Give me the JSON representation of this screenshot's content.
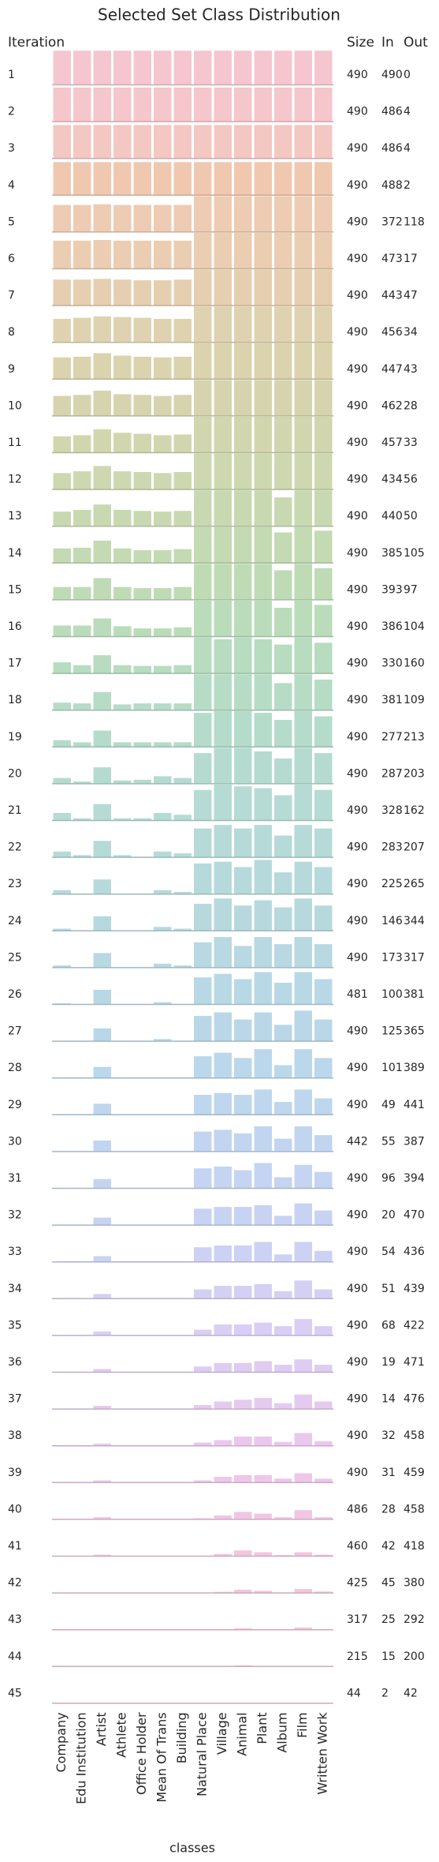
{
  "chart_data": {
    "type": "bar",
    "title": "Selected Set Class Distribution",
    "row_label": "Iteration",
    "columns": [
      "Size",
      "In",
      "Out"
    ],
    "xlabel": "classes",
    "categories": [
      "Company",
      "Edu Institution",
      "Artist",
      "Athlete",
      "Office Holder",
      "Mean Of Trans",
      "Building",
      "Natural Place",
      "Village",
      "Animal",
      "Plant",
      "Album",
      "Film",
      "Written Work"
    ],
    "ylim": [
      0,
      1
    ],
    "rows": [
      {
        "iteration": 1,
        "size": 490,
        "in": 490,
        "out": 0,
        "color": "#f5c6cf",
        "values": [
          0.95,
          0.95,
          0.95,
          0.95,
          0.95,
          0.95,
          0.95,
          0.95,
          0.95,
          0.95,
          0.95,
          0.95,
          0.95,
          0.95
        ]
      },
      {
        "iteration": 2,
        "size": 490,
        "in": 486,
        "out": 4,
        "color": "#f5c6cb",
        "values": [
          0.95,
          0.95,
          0.95,
          0.95,
          0.95,
          0.95,
          0.95,
          0.95,
          0.95,
          0.95,
          0.95,
          0.95,
          0.95,
          0.95
        ]
      },
      {
        "iteration": 3,
        "size": 490,
        "in": 486,
        "out": 4,
        "color": "#f3c7c2",
        "values": [
          0.93,
          0.93,
          0.93,
          0.93,
          0.93,
          0.93,
          0.93,
          0.93,
          0.93,
          0.93,
          0.93,
          0.93,
          0.93,
          0.93
        ]
      },
      {
        "iteration": 4,
        "size": 490,
        "in": 488,
        "out": 2,
        "color": "#f0c8b0",
        "values": [
          0.92,
          0.92,
          0.92,
          0.92,
          0.92,
          0.92,
          0.92,
          0.92,
          0.92,
          0.92,
          0.92,
          0.92,
          0.92,
          0.92
        ]
      },
      {
        "iteration": 5,
        "size": 490,
        "in": 372,
        "out": 118,
        "color": "#eecbb3",
        "values": [
          0.75,
          0.75,
          0.77,
          0.75,
          0.75,
          0.75,
          0.75,
          1,
          1,
          1,
          1,
          1,
          1,
          1
        ]
      },
      {
        "iteration": 6,
        "size": 490,
        "in": 473,
        "out": 17,
        "color": "#ebcdb2",
        "values": [
          0.78,
          0.78,
          0.8,
          0.78,
          0.78,
          0.78,
          0.78,
          1,
          1,
          1,
          1,
          1,
          1,
          1
        ]
      },
      {
        "iteration": 7,
        "size": 490,
        "in": 443,
        "out": 47,
        "color": "#e6cfb0",
        "values": [
          0.72,
          0.72,
          0.74,
          0.72,
          0.7,
          0.7,
          0.72,
          1,
          1,
          1,
          1,
          1,
          1,
          1
        ]
      },
      {
        "iteration": 8,
        "size": 490,
        "in": 456,
        "out": 34,
        "color": "#dfd2b0",
        "values": [
          0.65,
          0.68,
          0.72,
          0.7,
          0.68,
          0.65,
          0.65,
          1,
          1,
          1,
          1,
          1,
          1,
          1
        ]
      },
      {
        "iteration": 9,
        "size": 490,
        "in": 447,
        "out": 43,
        "color": "#dbd3ae",
        "values": [
          0.6,
          0.62,
          0.72,
          0.65,
          0.62,
          0.6,
          0.62,
          1,
          1,
          1,
          1,
          1,
          1,
          1
        ]
      },
      {
        "iteration": 10,
        "size": 490,
        "in": 462,
        "out": 28,
        "color": "#d6d4ae",
        "values": [
          0.55,
          0.58,
          0.7,
          0.6,
          0.58,
          0.55,
          0.58,
          1,
          1,
          1,
          1,
          1,
          1,
          1
        ]
      },
      {
        "iteration": 11,
        "size": 490,
        "in": 457,
        "out": 33,
        "color": "#d2d6ae",
        "values": [
          0.45,
          0.48,
          0.65,
          0.55,
          0.52,
          0.48,
          0.5,
          1,
          1,
          1,
          1,
          1,
          1,
          1
        ]
      },
      {
        "iteration": 12,
        "size": 490,
        "in": 434,
        "out": 56,
        "color": "#cdd8b0",
        "values": [
          0.45,
          0.5,
          0.65,
          0.5,
          0.48,
          0.45,
          0.48,
          1,
          1,
          1,
          1,
          1,
          1,
          1
        ]
      },
      {
        "iteration": 13,
        "size": 490,
        "in": 440,
        "out": 50,
        "color": "#c8d9b1",
        "values": [
          0.4,
          0.45,
          0.6,
          0.45,
          0.42,
          0.4,
          0.42,
          1,
          1,
          1,
          1,
          0.8,
          1,
          1
        ]
      },
      {
        "iteration": 14,
        "size": 490,
        "in": 385,
        "out": 105,
        "color": "#c3dab3",
        "values": [
          0.4,
          0.42,
          0.62,
          0.4,
          0.35,
          0.35,
          0.38,
          1,
          1,
          1,
          1,
          0.85,
          1,
          0.9
        ]
      },
      {
        "iteration": 15,
        "size": 490,
        "in": 393,
        "out": 97,
        "color": "#bedbb6",
        "values": [
          0.35,
          0.35,
          0.6,
          0.35,
          0.32,
          0.32,
          0.35,
          1,
          1,
          1,
          1,
          0.82,
          1,
          0.88
        ]
      },
      {
        "iteration": 16,
        "size": 490,
        "in": 386,
        "out": 104,
        "color": "#badcba",
        "values": [
          0.3,
          0.3,
          0.5,
          0.28,
          0.22,
          0.22,
          0.25,
          1,
          1,
          1,
          1,
          0.8,
          1,
          0.88
        ]
      },
      {
        "iteration": 17,
        "size": 490,
        "in": 330,
        "out": 160,
        "color": "#b7dcbf",
        "values": [
          0.3,
          0.22,
          0.5,
          0.22,
          0.2,
          0.2,
          0.22,
          1,
          0.95,
          1,
          0.95,
          0.8,
          1,
          0.85
        ]
      },
      {
        "iteration": 18,
        "size": 490,
        "in": 381,
        "out": 109,
        "color": "#b6dcc5",
        "values": [
          0.2,
          0.18,
          0.5,
          0.15,
          0.18,
          0.18,
          0.18,
          1,
          1,
          1,
          1,
          0.75,
          1,
          0.85
        ]
      },
      {
        "iteration": 19,
        "size": 490,
        "in": 277,
        "out": 213,
        "color": "#b5dccb",
        "values": [
          0.18,
          0.12,
          0.45,
          0.12,
          0.12,
          0.12,
          0.12,
          0.95,
          1,
          1,
          0.95,
          0.75,
          1,
          0.85
        ]
      },
      {
        "iteration": 20,
        "size": 490,
        "in": 287,
        "out": 203,
        "color": "#b5dbd0",
        "values": [
          0.15,
          0.05,
          0.45,
          0.08,
          0.1,
          0.2,
          0.15,
          0.85,
          1,
          1,
          0.9,
          0.7,
          1,
          0.85
        ]
      },
      {
        "iteration": 21,
        "size": 490,
        "in": 328,
        "out": 162,
        "color": "#b5dbd4",
        "values": [
          0.2,
          0.05,
          0.45,
          0.05,
          0.05,
          0.2,
          0.15,
          0.85,
          1,
          0.95,
          0.9,
          0.7,
          1,
          0.85
        ]
      },
      {
        "iteration": 22,
        "size": 490,
        "in": 283,
        "out": 207,
        "color": "#b6dad8",
        "values": [
          0.15,
          0.05,
          0.45,
          0.05,
          0,
          0.15,
          0.1,
          0.8,
          0.9,
          0.8,
          0.9,
          0.6,
          0.9,
          0.8
        ]
      },
      {
        "iteration": 23,
        "size": 490,
        "in": 225,
        "out": 265,
        "color": "#b6dadb",
        "values": [
          0.1,
          0,
          0.4,
          0,
          0,
          0.1,
          0.05,
          0.85,
          0.9,
          0.75,
          0.95,
          0.6,
          0.9,
          0.75
        ]
      },
      {
        "iteration": 24,
        "size": 490,
        "in": 146,
        "out": 344,
        "color": "#b7d9de",
        "values": [
          0.05,
          0,
          0.4,
          0,
          0,
          0.1,
          0.05,
          0.75,
          0.9,
          0.7,
          0.85,
          0.65,
          0.9,
          0.7
        ]
      },
      {
        "iteration": 25,
        "size": 490,
        "in": 173,
        "out": 317,
        "color": "#b8d8e2",
        "values": [
          0.05,
          0,
          0.4,
          0,
          0,
          0.1,
          0.05,
          0.7,
          0.85,
          0.6,
          0.85,
          0.65,
          0.85,
          0.65
        ]
      },
      {
        "iteration": 26,
        "size": 481,
        "in": 100,
        "out": 381,
        "color": "#b9d8e5",
        "values": [
          0.02,
          0,
          0.4,
          0,
          0,
          0.05,
          0,
          0.75,
          0.85,
          0.7,
          0.9,
          0.6,
          0.9,
          0.7
        ]
      },
      {
        "iteration": 27,
        "size": 490,
        "in": 125,
        "out": 365,
        "color": "#bad7e8",
        "values": [
          0,
          0,
          0.35,
          0,
          0,
          0.05,
          0,
          0.7,
          0.8,
          0.6,
          0.8,
          0.45,
          0.85,
          0.6
        ]
      },
      {
        "iteration": 28,
        "size": 490,
        "in": 101,
        "out": 389,
        "color": "#bbd7eb",
        "values": [
          0,
          0,
          0.3,
          0,
          0,
          0,
          0,
          0.6,
          0.7,
          0.55,
          0.8,
          0.35,
          0.8,
          0.55
        ]
      },
      {
        "iteration": 29,
        "size": 490,
        "in": 49,
        "out": 441,
        "color": "#bed6ee",
        "values": [
          0,
          0,
          0.3,
          0,
          0,
          0,
          0,
          0.55,
          0.6,
          0.55,
          0.7,
          0.35,
          0.7,
          0.45
        ]
      },
      {
        "iteration": 30,
        "size": 442,
        "in": 55,
        "out": 387,
        "color": "#c1d5f0",
        "values": [
          0,
          0,
          0.3,
          0,
          0,
          0,
          0,
          0.55,
          0.6,
          0.5,
          0.7,
          0.35,
          0.7,
          0.45
        ]
      },
      {
        "iteration": 31,
        "size": 490,
        "in": 96,
        "out": 394,
        "color": "#c4d4f2",
        "values": [
          0,
          0,
          0.25,
          0,
          0,
          0,
          0,
          0.55,
          0.6,
          0.5,
          0.7,
          0.3,
          0.65,
          0.45
        ]
      },
      {
        "iteration": 32,
        "size": 490,
        "in": 20,
        "out": 470,
        "color": "#c8d3f3",
        "values": [
          0,
          0,
          0.2,
          0,
          0,
          0,
          0,
          0.45,
          0.5,
          0.5,
          0.55,
          0.25,
          0.6,
          0.4
        ]
      },
      {
        "iteration": 33,
        "size": 490,
        "in": 54,
        "out": 436,
        "color": "#cdd1f4",
        "values": [
          0,
          0,
          0.15,
          0,
          0,
          0,
          0,
          0.4,
          0.45,
          0.45,
          0.55,
          0.2,
          0.55,
          0.3
        ]
      },
      {
        "iteration": 34,
        "size": 490,
        "in": 51,
        "out": 439,
        "color": "#d3d0f4",
        "values": [
          0,
          0,
          0.12,
          0,
          0,
          0,
          0,
          0.25,
          0.35,
          0.35,
          0.4,
          0.2,
          0.5,
          0.25
        ]
      },
      {
        "iteration": 35,
        "size": 490,
        "in": 68,
        "out": 422,
        "color": "#d9cef3",
        "values": [
          0,
          0,
          0.1,
          0,
          0,
          0,
          0,
          0.15,
          0.3,
          0.3,
          0.35,
          0.25,
          0.45,
          0.25
        ]
      },
      {
        "iteration": 36,
        "size": 490,
        "in": 19,
        "out": 471,
        "color": "#dfccf2",
        "values": [
          0,
          0,
          0.08,
          0,
          0,
          0,
          0,
          0.15,
          0.25,
          0.25,
          0.3,
          0.2,
          0.35,
          0.2
        ]
      },
      {
        "iteration": 37,
        "size": 490,
        "in": 14,
        "out": 476,
        "color": "#e5caf0",
        "values": [
          0,
          0,
          0.08,
          0,
          0,
          0,
          0,
          0.1,
          0.2,
          0.25,
          0.3,
          0.15,
          0.4,
          0.2
        ]
      },
      {
        "iteration": 38,
        "size": 490,
        "in": 32,
        "out": 458,
        "color": "#eac8ee",
        "values": [
          0,
          0,
          0.05,
          0,
          0,
          0,
          0,
          0.08,
          0.15,
          0.25,
          0.25,
          0.1,
          0.35,
          0.12
        ]
      },
      {
        "iteration": 39,
        "size": 490,
        "in": 31,
        "out": 459,
        "color": "#eec7ea",
        "values": [
          0,
          0,
          0.05,
          0,
          0,
          0,
          0,
          0.05,
          0.15,
          0.2,
          0.2,
          0.1,
          0.25,
          0.1
        ]
      },
      {
        "iteration": 40,
        "size": 486,
        "in": 28,
        "out": 458,
        "color": "#f1c6e5",
        "values": [
          0,
          0,
          0.05,
          0,
          0,
          0,
          0,
          0.02,
          0.1,
          0.2,
          0.15,
          0.05,
          0.25,
          0.05
        ]
      },
      {
        "iteration": 41,
        "size": 460,
        "in": 42,
        "out": 418,
        "color": "#f3c6df",
        "values": [
          0,
          0,
          0.03,
          0,
          0,
          0,
          0,
          0,
          0.05,
          0.15,
          0.1,
          0.02,
          0.1,
          0.03
        ]
      },
      {
        "iteration": 42,
        "size": 425,
        "in": 45,
        "out": 380,
        "color": "#f4c6da",
        "values": [
          0,
          0,
          0,
          0,
          0,
          0,
          0,
          0,
          0.02,
          0.08,
          0.05,
          0,
          0.1,
          0.03
        ]
      },
      {
        "iteration": 43,
        "size": 317,
        "in": 25,
        "out": 292,
        "color": "#f5c6d5",
        "values": [
          0,
          0,
          0,
          0,
          0,
          0,
          0,
          0,
          0,
          0.03,
          0,
          0,
          0.05,
          0
        ]
      },
      {
        "iteration": 44,
        "size": 215,
        "in": 15,
        "out": 200,
        "color": "#f5c6d1",
        "values": [
          0,
          0,
          0,
          0,
          0,
          0,
          0,
          0,
          0,
          0.02,
          0,
          0,
          0,
          0
        ]
      },
      {
        "iteration": 45,
        "size": 44,
        "in": 2,
        "out": 42,
        "color": "#f5c6cf",
        "values": [
          0,
          0,
          0,
          0,
          0,
          0,
          0,
          0,
          0,
          0,
          0,
          0,
          0,
          0
        ]
      }
    ]
  }
}
